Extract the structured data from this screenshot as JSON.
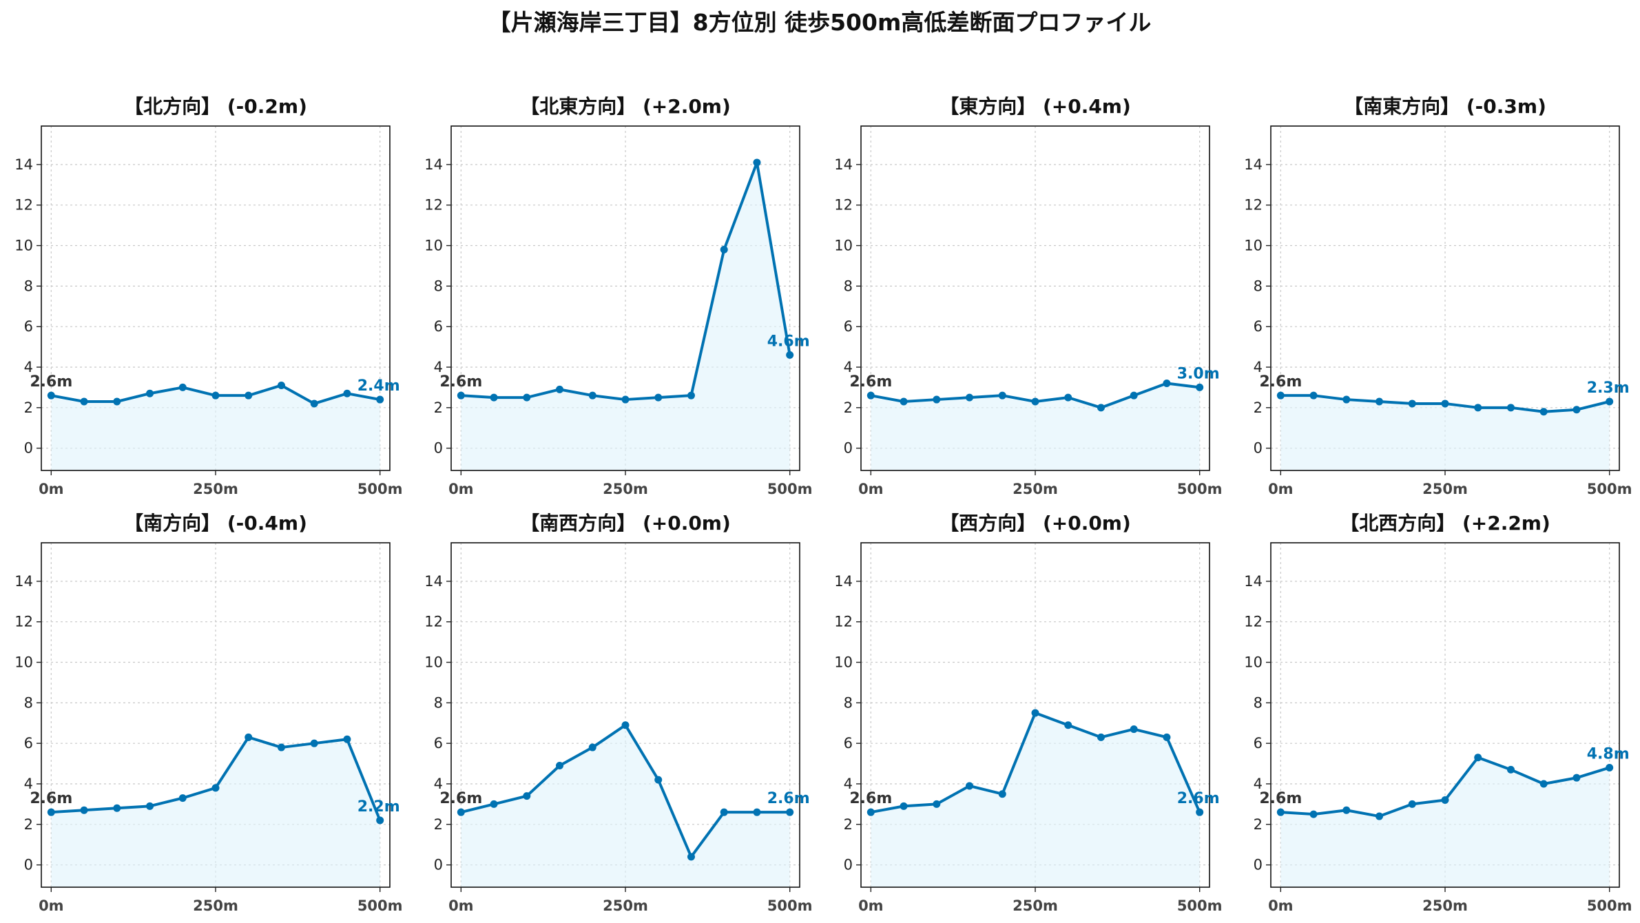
{
  "title": "【片瀬海岸三丁目】8方位別 徒歩500m高低差断面プロファイル",
  "colors": {
    "line": "#0072b2",
    "fill": "#e0f3fb",
    "start_label": "#333333",
    "end_label": "#0072b2"
  },
  "chart_data": [
    {
      "type": "area",
      "title": "【北方向】 (-0.2m)",
      "x": [
        0,
        50,
        100,
        150,
        200,
        250,
        300,
        350,
        400,
        450,
        500
      ],
      "values": [
        2.6,
        2.3,
        2.3,
        2.7,
        3.0,
        2.6,
        2.6,
        3.1,
        2.2,
        2.7,
        2.4
      ],
      "start_label": "2.6m",
      "end_label": "2.4m",
      "xticks": [
        0,
        250,
        500
      ],
      "xtick_labels": [
        "0m",
        "250m",
        "500m"
      ],
      "yticks": [
        0,
        2,
        4,
        6,
        8,
        10,
        12,
        14
      ],
      "xlim": [
        -15,
        515
      ],
      "ylim": [
        -1.1,
        15.9
      ],
      "grid": true
    },
    {
      "type": "area",
      "title": "【北東方向】 (+2.0m)",
      "x": [
        0,
        50,
        100,
        150,
        200,
        250,
        300,
        350,
        400,
        450,
        500
      ],
      "values": [
        2.6,
        2.5,
        2.5,
        2.9,
        2.6,
        2.4,
        2.5,
        2.6,
        9.8,
        14.1,
        4.6
      ],
      "start_label": "2.6m",
      "end_label": "4.6m",
      "xticks": [
        0,
        250,
        500
      ],
      "xtick_labels": [
        "0m",
        "250m",
        "500m"
      ],
      "yticks": [
        0,
        2,
        4,
        6,
        8,
        10,
        12,
        14
      ],
      "xlim": [
        -15,
        515
      ],
      "ylim": [
        -1.1,
        15.9
      ],
      "grid": true
    },
    {
      "type": "area",
      "title": "【東方向】 (+0.4m)",
      "x": [
        0,
        50,
        100,
        150,
        200,
        250,
        300,
        350,
        400,
        450,
        500
      ],
      "values": [
        2.6,
        2.3,
        2.4,
        2.5,
        2.6,
        2.3,
        2.5,
        2.0,
        2.6,
        3.2,
        3.0
      ],
      "start_label": "2.6m",
      "end_label": "3.0m",
      "xticks": [
        0,
        250,
        500
      ],
      "xtick_labels": [
        "0m",
        "250m",
        "500m"
      ],
      "yticks": [
        0,
        2,
        4,
        6,
        8,
        10,
        12,
        14
      ],
      "xlim": [
        -15,
        515
      ],
      "ylim": [
        -1.1,
        15.9
      ],
      "grid": true
    },
    {
      "type": "area",
      "title": "【南東方向】 (-0.3m)",
      "x": [
        0,
        50,
        100,
        150,
        200,
        250,
        300,
        350,
        400,
        450,
        500
      ],
      "values": [
        2.6,
        2.6,
        2.4,
        2.3,
        2.2,
        2.2,
        2.0,
        2.0,
        1.8,
        1.9,
        2.3
      ],
      "start_label": "2.6m",
      "end_label": "2.3m",
      "xticks": [
        0,
        250,
        500
      ],
      "xtick_labels": [
        "0m",
        "250m",
        "500m"
      ],
      "yticks": [
        0,
        2,
        4,
        6,
        8,
        10,
        12,
        14
      ],
      "xlim": [
        -15,
        515
      ],
      "ylim": [
        -1.1,
        15.9
      ],
      "grid": true
    },
    {
      "type": "area",
      "title": "【南方向】 (-0.4m)",
      "x": [
        0,
        50,
        100,
        150,
        200,
        250,
        300,
        350,
        400,
        450,
        500
      ],
      "values": [
        2.6,
        2.7,
        2.8,
        2.9,
        3.3,
        3.8,
        6.3,
        5.8,
        6.0,
        6.2,
        2.2
      ],
      "start_label": "2.6m",
      "end_label": "2.2m",
      "xticks": [
        0,
        250,
        500
      ],
      "xtick_labels": [
        "0m",
        "250m",
        "500m"
      ],
      "yticks": [
        0,
        2,
        4,
        6,
        8,
        10,
        12,
        14
      ],
      "xlim": [
        -15,
        515
      ],
      "ylim": [
        -1.1,
        15.9
      ],
      "grid": true
    },
    {
      "type": "area",
      "title": "【南西方向】 (+0.0m)",
      "x": [
        0,
        50,
        100,
        150,
        200,
        250,
        300,
        350,
        400,
        450,
        500
      ],
      "values": [
        2.6,
        3.0,
        3.4,
        4.9,
        5.8,
        6.9,
        4.2,
        0.4,
        2.6,
        2.6,
        2.6
      ],
      "start_label": "2.6m",
      "end_label": "2.6m",
      "xticks": [
        0,
        250,
        500
      ],
      "xtick_labels": [
        "0m",
        "250m",
        "500m"
      ],
      "yticks": [
        0,
        2,
        4,
        6,
        8,
        10,
        12,
        14
      ],
      "xlim": [
        -15,
        515
      ],
      "ylim": [
        -1.1,
        15.9
      ],
      "grid": true
    },
    {
      "type": "area",
      "title": "【西方向】 (+0.0m)",
      "x": [
        0,
        50,
        100,
        150,
        200,
        250,
        300,
        350,
        400,
        450,
        500
      ],
      "values": [
        2.6,
        2.9,
        3.0,
        3.9,
        3.5,
        7.5,
        6.9,
        6.3,
        6.7,
        6.3,
        2.6
      ],
      "start_label": "2.6m",
      "end_label": "2.6m",
      "xticks": [
        0,
        250,
        500
      ],
      "xtick_labels": [
        "0m",
        "250m",
        "500m"
      ],
      "yticks": [
        0,
        2,
        4,
        6,
        8,
        10,
        12,
        14
      ],
      "xlim": [
        -15,
        515
      ],
      "ylim": [
        -1.1,
        15.9
      ],
      "grid": true
    },
    {
      "type": "area",
      "title": "【北西方向】 (+2.2m)",
      "x": [
        0,
        50,
        100,
        150,
        200,
        250,
        300,
        350,
        400,
        450,
        500
      ],
      "values": [
        2.6,
        2.5,
        2.7,
        2.4,
        3.0,
        3.2,
        5.3,
        4.7,
        4.0,
        4.3,
        4.8
      ],
      "start_label": "2.6m",
      "end_label": "4.8m",
      "xticks": [
        0,
        250,
        500
      ],
      "xtick_labels": [
        "0m",
        "250m",
        "500m"
      ],
      "yticks": [
        0,
        2,
        4,
        6,
        8,
        10,
        12,
        14
      ],
      "xlim": [
        -15,
        515
      ],
      "ylim": [
        -1.1,
        15.9
      ],
      "grid": true
    }
  ]
}
